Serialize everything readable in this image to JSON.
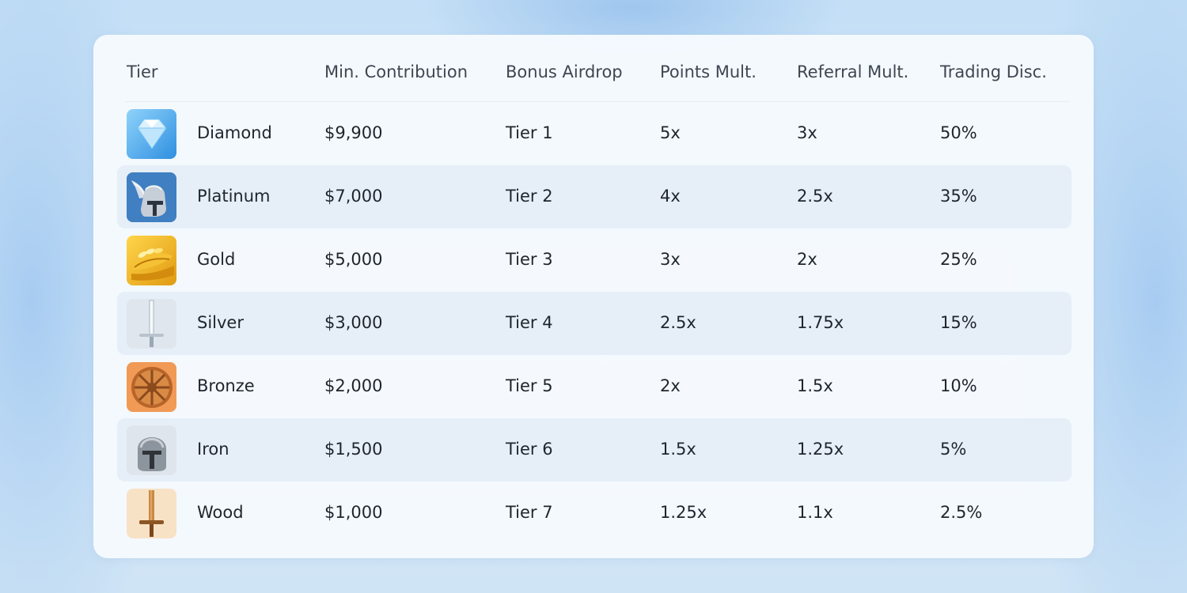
{
  "table": {
    "headers": {
      "tier": "Tier",
      "min_contribution": "Min. Contribution",
      "bonus_airdrop": "Bonus Airdrop",
      "points_mult": "Points Mult.",
      "referral_mult": "Referral Mult.",
      "trading_disc": "Trading Disc."
    },
    "rows": [
      {
        "icon": "diamond-icon",
        "tier": "Diamond",
        "min": "$9,900",
        "airdrop": "Tier 1",
        "points": "5x",
        "referral": "3x",
        "disc": "50%"
      },
      {
        "icon": "winged-helmet-icon",
        "tier": "Platinum",
        "min": "$7,000",
        "airdrop": "Tier 2",
        "points": "4x",
        "referral": "2.5x",
        "disc": "35%"
      },
      {
        "icon": "laurel-wreath-icon",
        "tier": "Gold",
        "min": "$5,000",
        "airdrop": "Tier 3",
        "points": "3x",
        "referral": "2x",
        "disc": "25%"
      },
      {
        "icon": "silver-sword-icon",
        "tier": "Silver",
        "min": "$3,000",
        "airdrop": "Tier 4",
        "points": "2.5x",
        "referral": "1.75x",
        "disc": "15%"
      },
      {
        "icon": "bronze-shield-icon",
        "tier": "Bronze",
        "min": "$2,000",
        "airdrop": "Tier 5",
        "points": "2x",
        "referral": "1.5x",
        "disc": "10%"
      },
      {
        "icon": "iron-helmet-icon",
        "tier": "Iron",
        "min": "$1,500",
        "airdrop": "Tier 6",
        "points": "1.5x",
        "referral": "1.25x",
        "disc": "5%"
      },
      {
        "icon": "wooden-sword-icon",
        "tier": "Wood",
        "min": "$1,000",
        "airdrop": "Tier 7",
        "points": "1.25x",
        "referral": "1.1x",
        "disc": "2.5%"
      }
    ]
  }
}
